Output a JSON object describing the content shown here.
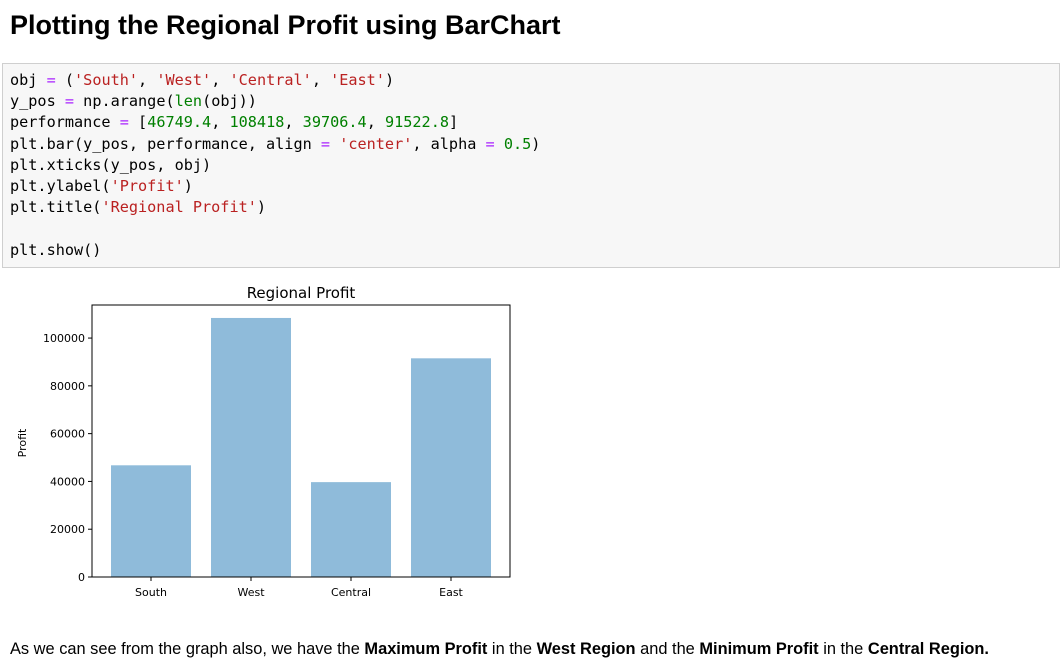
{
  "heading": "Plotting the Regional Profit using BarChart",
  "code": {
    "lines": [
      [
        {
          "t": "obj "
        },
        {
          "t": "=",
          "c": "op"
        },
        {
          "t": " ("
        },
        {
          "t": "'South'",
          "c": "str"
        },
        {
          "t": ", "
        },
        {
          "t": "'West'",
          "c": "str"
        },
        {
          "t": ", "
        },
        {
          "t": "'Central'",
          "c": "str"
        },
        {
          "t": ", "
        },
        {
          "t": "'East'",
          "c": "str"
        },
        {
          "t": ")"
        }
      ],
      [
        {
          "t": "y_pos "
        },
        {
          "t": "=",
          "c": "op"
        },
        {
          "t": " np.arange("
        },
        {
          "t": "len",
          "c": "bi"
        },
        {
          "t": "(obj))"
        }
      ],
      [
        {
          "t": "performance "
        },
        {
          "t": "=",
          "c": "op"
        },
        {
          "t": " ["
        },
        {
          "t": "46749.4",
          "c": "num"
        },
        {
          "t": ", "
        },
        {
          "t": "108418",
          "c": "num"
        },
        {
          "t": ", "
        },
        {
          "t": "39706.4",
          "c": "num"
        },
        {
          "t": ", "
        },
        {
          "t": "91522.8",
          "c": "num"
        },
        {
          "t": "]"
        }
      ],
      [
        {
          "t": "plt.bar(y_pos, performance, align "
        },
        {
          "t": "=",
          "c": "op"
        },
        {
          "t": " "
        },
        {
          "t": "'center'",
          "c": "str"
        },
        {
          "t": ", alpha "
        },
        {
          "t": "=",
          "c": "op"
        },
        {
          "t": " "
        },
        {
          "t": "0.5",
          "c": "num"
        },
        {
          "t": ")"
        }
      ],
      [
        {
          "t": "plt.xticks(y_pos, obj)"
        }
      ],
      [
        {
          "t": "plt.ylabel("
        },
        {
          "t": "'Profit'",
          "c": "str"
        },
        {
          "t": ")"
        }
      ],
      [
        {
          "t": "plt.title("
        },
        {
          "t": "'Regional Profit'",
          "c": "str"
        },
        {
          "t": ")"
        }
      ],
      [],
      [
        {
          "t": "plt.show()"
        }
      ]
    ]
  },
  "chart_data": {
    "type": "bar",
    "title": "Regional Profit",
    "xlabel": "",
    "ylabel": "Profit",
    "categories": [
      "South",
      "West",
      "Central",
      "East"
    ],
    "values": [
      46749.4,
      108418,
      39706.4,
      91522.8
    ],
    "ylim": [
      0,
      113839
    ],
    "yticks": [
      0,
      20000,
      40000,
      60000,
      80000,
      100000
    ],
    "ytick_labels": [
      "0",
      "20000",
      "40000",
      "60000",
      "80000",
      "100000"
    ],
    "bar_color": "#8fbbda",
    "grid": false
  },
  "conclusion": {
    "parts": [
      {
        "t": "As we can see from the graph also, we have the "
      },
      {
        "t": "Maximum Profit",
        "b": true
      },
      {
        "t": " in the "
      },
      {
        "t": "West Region",
        "b": true
      },
      {
        "t": " and the "
      },
      {
        "t": "Minimum Profit",
        "b": true
      },
      {
        "t": " in the "
      },
      {
        "t": "Central Region.",
        "b": true
      }
    ]
  }
}
